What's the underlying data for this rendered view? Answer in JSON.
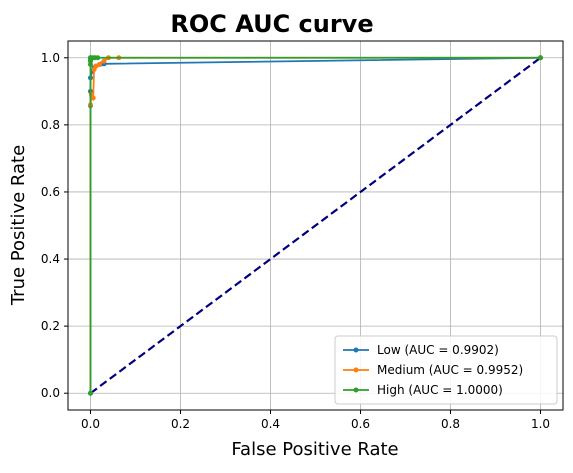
{
  "chart_data": {
    "type": "line",
    "title": "ROC AUC curve",
    "xlabel": "False Positive Rate",
    "ylabel": "True Positive Rate",
    "xlim": [
      -0.05,
      1.05
    ],
    "ylim": [
      -0.05,
      1.05
    ],
    "xticks": [
      0.0,
      0.2,
      0.4,
      0.6,
      0.8,
      1.0
    ],
    "yticks": [
      0.0,
      0.2,
      0.4,
      0.6,
      0.8,
      1.0
    ],
    "tick_labels_x": [
      "0.0",
      "0.2",
      "0.4",
      "0.6",
      "0.8",
      "1.0"
    ],
    "tick_labels_y": [
      "0.0",
      "0.2",
      "0.4",
      "0.6",
      "0.8",
      "1.0"
    ],
    "grid": true,
    "legend_position": "lower-right",
    "series": [
      {
        "name": "Low (AUC = 0.9902)",
        "color": "#1f77b4",
        "marker": "circle",
        "x": [
          0.0,
          0.0,
          0.0,
          0.0,
          0.004,
          0.008,
          0.012,
          0.02,
          0.025,
          0.03,
          1.0
        ],
        "y": [
          0.0,
          0.857,
          0.9,
          0.94,
          0.96,
          0.97,
          0.975,
          0.98,
          0.982,
          0.982,
          1.0
        ]
      },
      {
        "name": "Medium (AUC = 0.9952)",
        "color": "#ff7f0e",
        "marker": "circle",
        "x": [
          0.0,
          0.0,
          0.002,
          0.006,
          0.008,
          0.012,
          0.02,
          0.03,
          0.04,
          0.063,
          1.0
        ],
        "y": [
          0.0,
          0.86,
          0.89,
          0.88,
          0.965,
          0.975,
          0.98,
          0.99,
          1.0,
          1.0,
          1.0
        ]
      },
      {
        "name": "High (AUC = 1.0000)",
        "color": "#2ca02c",
        "marker": "circle",
        "x": [
          0.0,
          0.0,
          0.0,
          0.0,
          0.0,
          0.0,
          0.005,
          0.01,
          0.016,
          1.0
        ],
        "y": [
          0.0,
          0.98,
          0.99,
          0.995,
          1.0,
          1.0,
          1.0,
          1.0,
          1.0,
          1.0
        ]
      }
    ],
    "reference_line": {
      "color": "#000080",
      "style": "dashed",
      "x": [
        0.0,
        1.0
      ],
      "y": [
        0.0,
        1.0
      ]
    }
  }
}
